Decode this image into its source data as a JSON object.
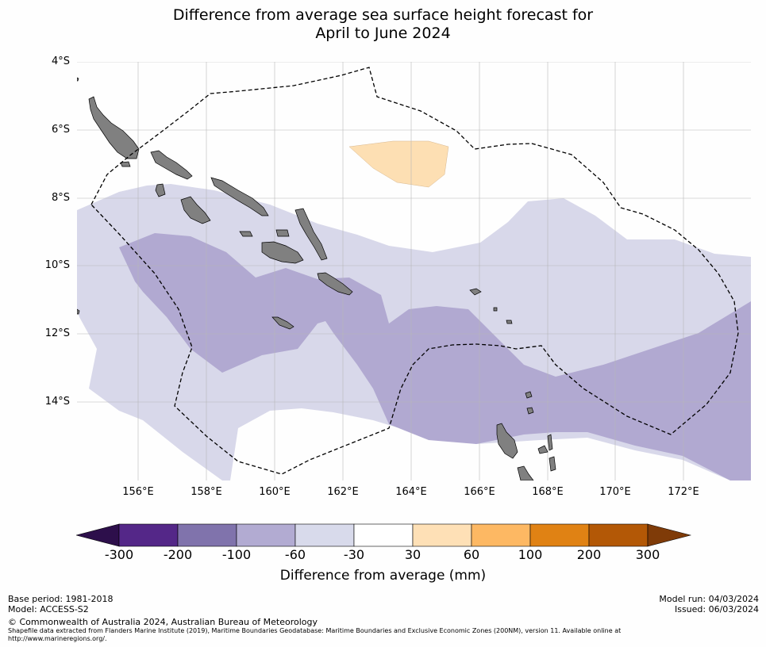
{
  "title": {
    "line1": "Difference from average sea surface height forecast for",
    "line2": "April to June 2024"
  },
  "map": {
    "lat_labels": [
      "4°S",
      "6°S",
      "8°S",
      "10°S",
      "12°S",
      "14°S"
    ],
    "lon_labels": [
      "156°E",
      "158°E",
      "160°E",
      "162°E",
      "164°E",
      "166°E",
      "168°E",
      "170°E",
      "172°E"
    ],
    "colors": {
      "light_purple": "#d8d8ea",
      "mid_purple": "#b1a9d1",
      "light_orange": "#fddfb3",
      "land": "#808080",
      "grid": "#b8b8b8"
    }
  },
  "colorbar": {
    "ticks": [
      "-300",
      "-200",
      "-100",
      "-60",
      "-30",
      "30",
      "60",
      "100",
      "200",
      "300"
    ],
    "colors": [
      "#2d0f4b",
      "#542788",
      "#8073ac",
      "#b2abd2",
      "#d8daeb",
      "#ffffff",
      "#fee0b6",
      "#fdb863",
      "#e08214",
      "#b35806",
      "#7f3b08"
    ],
    "label": "Difference from average (mm)"
  },
  "footer": {
    "base_period": "Base period: 1981-2018",
    "model": "Model: ACCESS-S2",
    "copyright": "© Commonwealth of Australia 2024, Australian Bureau of Meteorology",
    "shapefile_line1": "Shapefile data extracted from Flanders Marine Institute (2019), Maritime Boundaries Geodatabase: Maritime Boundaries and Exclusive Economic Zones (200NM), version 11. Available online at",
    "shapefile_line2": "http://www.marineregions.org/.",
    "model_run": "Model run: 04/03/2024",
    "issued": "Issued: 06/03/2024"
  }
}
